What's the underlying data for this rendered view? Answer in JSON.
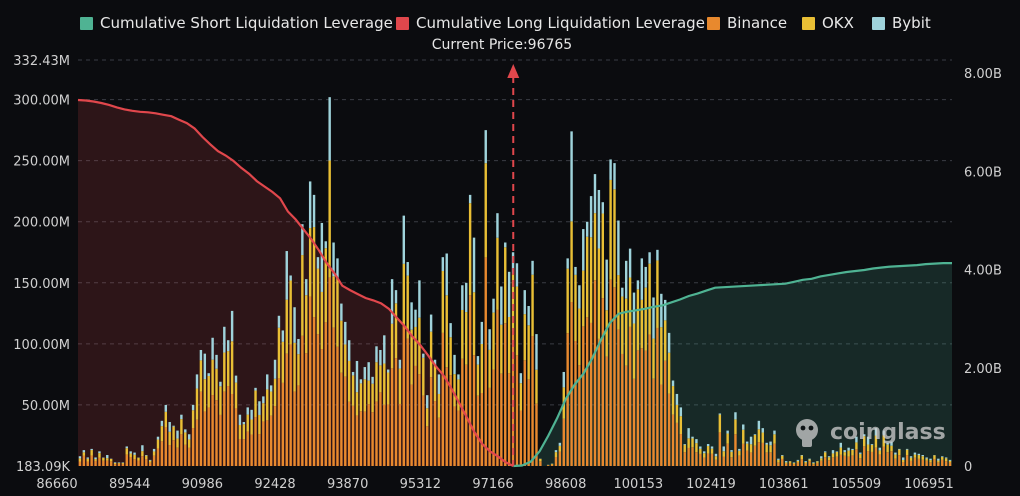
{
  "legend": [
    {
      "label": "Cumulative Short Liquidation Leverage",
      "color": "#4fb393"
    },
    {
      "label": "Cumulative Long Liquidation Leverage",
      "color": "#e0474c"
    },
    {
      "label": "Binance",
      "color": "#e8892e"
    },
    {
      "label": "OKX",
      "color": "#e9bf35"
    },
    {
      "label": "Bybit",
      "color": "#9fd3db"
    }
  ],
  "current_price_text": "Current Price:96765",
  "watermark": "coinglass",
  "colors": {
    "background": "#0b0c0f",
    "short": "#4fb393",
    "long": "#e0474c",
    "binance": "#e8892e",
    "okx": "#e9bf35",
    "bybit": "#9fd3db",
    "grid": "#3a3d44",
    "axis_text": "#d0d0d0"
  },
  "chart_data": {
    "type": "bar",
    "x_tick_labels": [
      "86660",
      "89544",
      "90986",
      "92428",
      "93870",
      "95312",
      "97166",
      "98608",
      "100153",
      "102419",
      "103861",
      "105509",
      "106951"
    ],
    "left_axis": {
      "tick_labels": [
        "183.09K",
        "50.00M",
        "100.00M",
        "150.00M",
        "200.00M",
        "250.00M",
        "300.00M",
        "332.43M"
      ],
      "ylim": [
        183090,
        332430000
      ]
    },
    "right_axis": {
      "tick_labels": [
        "0",
        "2.00B",
        "4.00B",
        "6.00B",
        "8.00B"
      ],
      "ylim": [
        0,
        8000000000
      ]
    },
    "current_price": 96765,
    "grid": "horizontal-dashed",
    "legend_position": "top",
    "bar_totals_millions": [
      8,
      13,
      7,
      14,
      7,
      12,
      7,
      9,
      6,
      3,
      3,
      3,
      16,
      12,
      11,
      7,
      17,
      9,
      5,
      14,
      24,
      37,
      50,
      36,
      33,
      29,
      42,
      30,
      26,
      50,
      75,
      95,
      92,
      76,
      105,
      91,
      69,
      114,
      103,
      127,
      74,
      42,
      36,
      48,
      46,
      64,
      53,
      57,
      75,
      66,
      87,
      123,
      111,
      176,
      156,
      130,
      104,
      198,
      153,
      233,
      222,
      171,
      199,
      184,
      302,
      183,
      170,
      133,
      118,
      103,
      77,
      86,
      71,
      81,
      85,
      73,
      98,
      95,
      107,
      79,
      153,
      144,
      87,
      205,
      167,
      134,
      128,
      152,
      92,
      58,
      124,
      87,
      75,
      171,
      174,
      117,
      91,
      75,
      148,
      150,
      222,
      187,
      90,
      118,
      275,
      112,
      137,
      207,
      147,
      183,
      159,
      175,
      166,
      76,
      144,
      131,
      168,
      108,
      6,
      0,
      1,
      2,
      13,
      19,
      77,
      170,
      274,
      163,
      148,
      194,
      200,
      221,
      239,
      226,
      216,
      169,
      251,
      248,
      201,
      146,
      168,
      178,
      142,
      152,
      170,
      163,
      175,
      138,
      177,
      141,
      136,
      109,
      70,
      59,
      48,
      18,
      31,
      24,
      22,
      16,
      12,
      18,
      16,
      10,
      43,
      16,
      29,
      13,
      44,
      14,
      34,
      20,
      24,
      26,
      37,
      31,
      19,
      20,
      29,
      6,
      9,
      4,
      4,
      3,
      5,
      9,
      4,
      6,
      3,
      4,
      8,
      12,
      8,
      13,
      12,
      19,
      13,
      15,
      14,
      24,
      11,
      26,
      24,
      18,
      31,
      15,
      29,
      19,
      20,
      11,
      14,
      7,
      14,
      8,
      11,
      10,
      9,
      7,
      6,
      9,
      6,
      8,
      7,
      5
    ],
    "series": [
      {
        "name": "Cumulative Long Liquidation Leverage",
        "axis": "right",
        "price_from": 86660,
        "price_to": 96765,
        "values_billions": [
          7.45,
          7.44,
          7.42,
          7.39,
          7.35,
          7.3,
          7.26,
          7.23,
          7.21,
          7.2,
          7.18,
          7.15,
          7.12,
          7.05,
          6.98,
          6.87,
          6.7,
          6.55,
          6.41,
          6.32,
          6.21,
          6.07,
          5.95,
          5.8,
          5.69,
          5.58,
          5.45,
          5.18,
          5.02,
          4.82,
          4.62,
          4.39,
          4.13,
          3.92,
          3.67,
          3.58,
          3.5,
          3.42,
          3.37,
          3.31,
          3.2,
          3.02,
          2.85,
          2.64,
          2.47,
          2.26,
          2.04,
          1.85,
          1.59,
          1.3,
          1.0,
          0.69,
          0.45,
          0.3,
          0.2,
          0.08,
          0.0
        ]
      },
      {
        "name": "Cumulative Short Liquidation Leverage",
        "axis": "right",
        "price_from": 96765,
        "price_to": 106951,
        "values_billions": [
          0.0,
          0.01,
          0.09,
          0.3,
          0.62,
          0.97,
          1.37,
          1.66,
          1.88,
          2.19,
          2.57,
          2.91,
          3.1,
          3.14,
          3.17,
          3.2,
          3.24,
          3.27,
          3.33,
          3.39,
          3.46,
          3.51,
          3.57,
          3.63,
          3.64,
          3.65,
          3.66,
          3.67,
          3.68,
          3.69,
          3.7,
          3.71,
          3.75,
          3.79,
          3.81,
          3.86,
          3.89,
          3.92,
          3.95,
          3.97,
          3.99,
          4.02,
          4.04,
          4.06,
          4.07,
          4.08,
          4.09,
          4.11,
          4.12,
          4.13,
          4.13
        ]
      }
    ]
  }
}
